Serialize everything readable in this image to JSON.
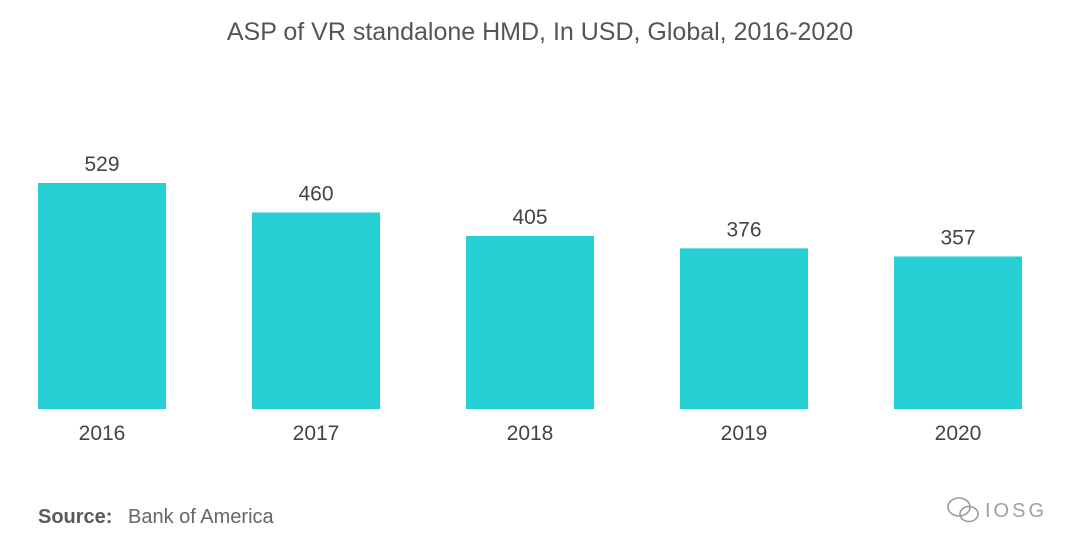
{
  "chart_data": {
    "type": "bar",
    "title": "ASP of VR standalone HMD, In USD, Global, 2016-2020",
    "categories": [
      "2016",
      "2017",
      "2018",
      "2019",
      "2020"
    ],
    "values": [
      529,
      460,
      405,
      376,
      357
    ],
    "xlabel": "",
    "ylabel": "",
    "ylim": [
      0,
      529
    ],
    "grid": false,
    "bar_color": "#26CFD3"
  },
  "source": {
    "label": "Source:",
    "text": "Bank of America"
  },
  "watermark": {
    "text": "IOSG",
    "icon": "wechat-icon"
  }
}
